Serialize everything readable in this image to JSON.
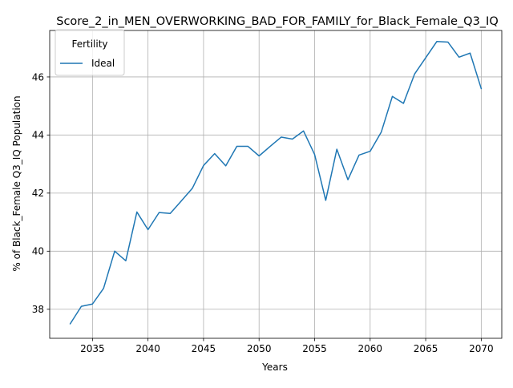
{
  "chart_data": {
    "type": "line",
    "title": "Score_2_in_MEN_OVERWORKING_BAD_FOR_FAMILY_for_Black_Female_Q3_IQ",
    "xlabel": "Years",
    "ylabel": "% of Black_Female Q3_IQ Population",
    "xlim": [
      2031.15,
      2071.85
    ],
    "ylim": [
      37.0,
      47.6
    ],
    "xticks": [
      2035,
      2040,
      2045,
      2050,
      2055,
      2060,
      2065,
      2070
    ],
    "yticks": [
      38,
      40,
      42,
      44,
      46
    ],
    "grid": true,
    "legend": {
      "title": "Fertility",
      "placement": "top-left"
    },
    "x": [
      2033,
      2034,
      2035,
      2036,
      2037,
      2038,
      2039,
      2040,
      2041,
      2042,
      2043,
      2044,
      2045,
      2046,
      2047,
      2048,
      2049,
      2050,
      2051,
      2052,
      2053,
      2054,
      2055,
      2056,
      2057,
      2058,
      2059,
      2060,
      2061,
      2062,
      2063,
      2064,
      2065,
      2066,
      2067,
      2068,
      2069,
      2070
    ],
    "series": [
      {
        "name": "Ideal",
        "color": "#1f77b4",
        "values": [
          37.5,
          38.1,
          38.18,
          38.72,
          40.0,
          39.67,
          41.35,
          40.74,
          41.33,
          41.3,
          41.73,
          42.17,
          42.95,
          43.36,
          42.94,
          43.61,
          43.61,
          43.28,
          43.61,
          43.93,
          43.86,
          44.14,
          43.33,
          41.75,
          43.51,
          42.46,
          43.31,
          43.44,
          44.1,
          45.33,
          45.09,
          46.1,
          46.66,
          47.22,
          47.2,
          46.68,
          46.82,
          45.6
        ]
      }
    ]
  }
}
